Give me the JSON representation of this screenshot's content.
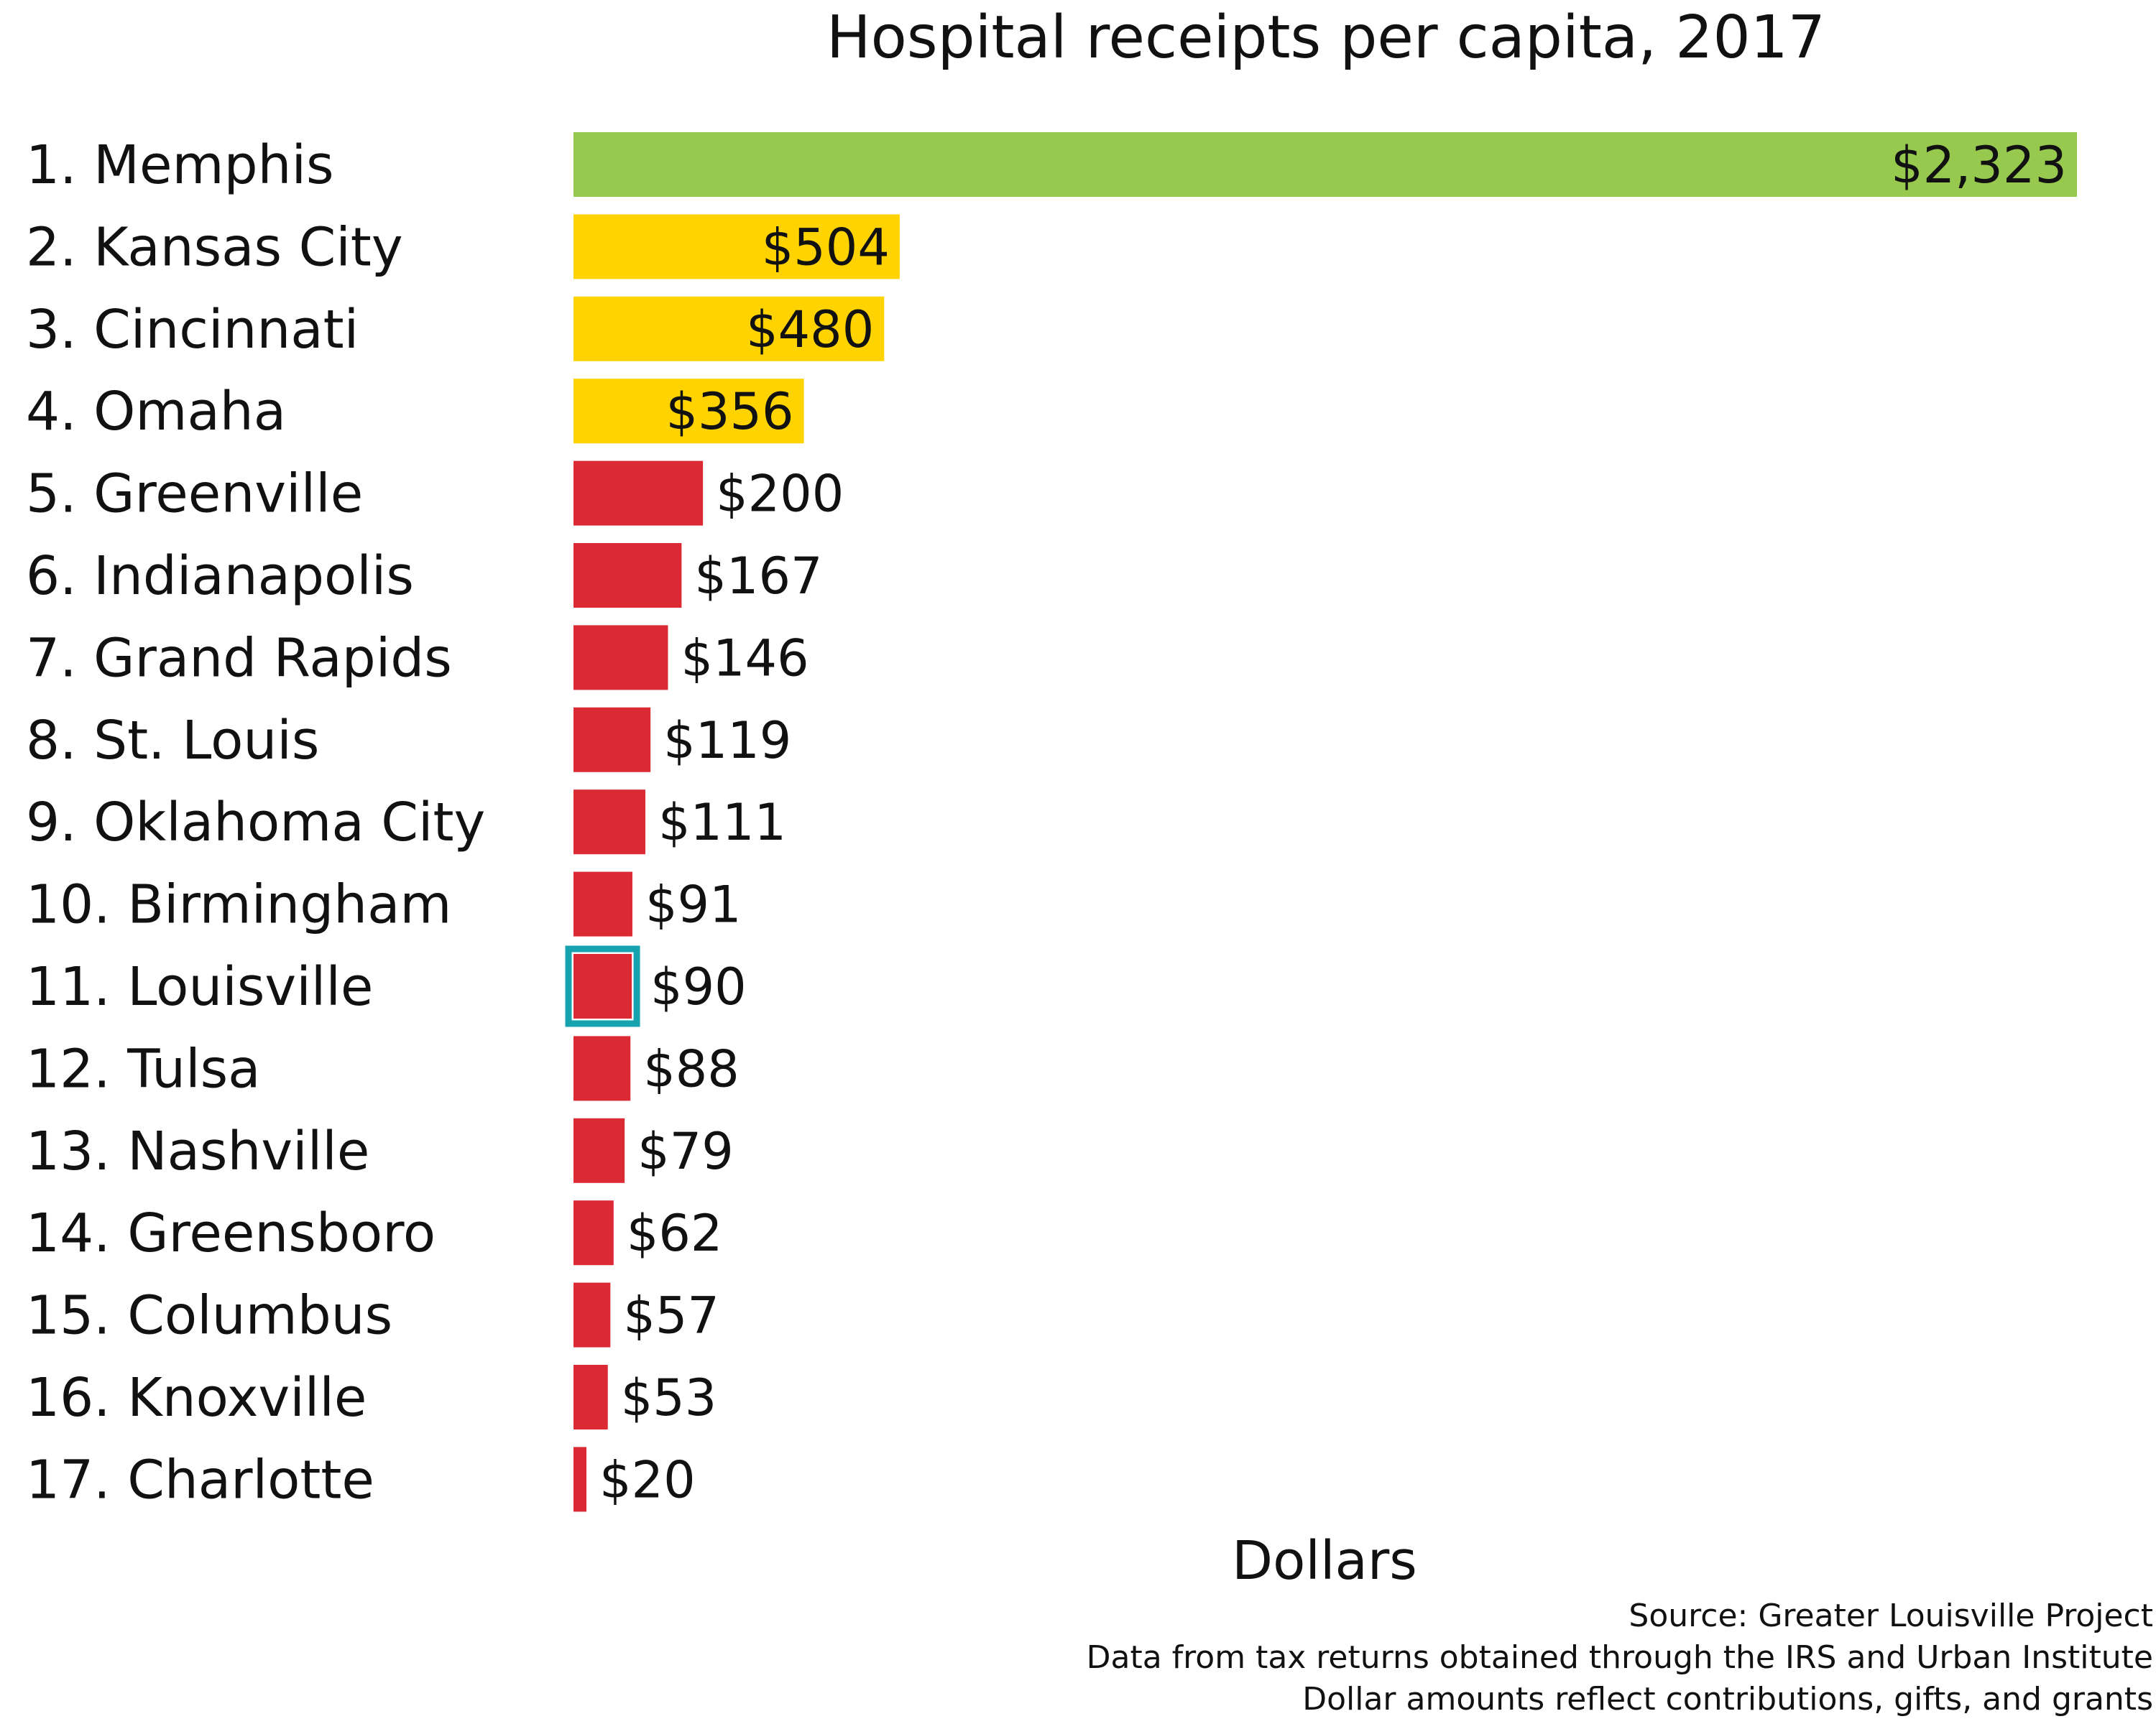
{
  "chart_data": {
    "type": "bar",
    "orientation": "horizontal",
    "title": "Hospital receipts per capita, 2017",
    "xlabel": "Dollars",
    "ylabel": "",
    "xlim": [
      0,
      2323
    ],
    "grid": false,
    "legend": "none",
    "categories": [
      "1. Memphis",
      "2. Kansas City",
      "3. Cincinnati",
      "4. Omaha",
      "5. Greenville",
      "6. Indianapolis",
      "7. Grand Rapids",
      "8. St. Louis",
      "9. Oklahoma City",
      "10. Birmingham",
      "11. Louisville",
      "12. Tulsa",
      "13. Nashville",
      "14. Greensboro",
      "15. Columbus",
      "16. Knoxville",
      "17. Charlotte"
    ],
    "values": [
      2323,
      504,
      480,
      356,
      200,
      167,
      146,
      119,
      111,
      91,
      90,
      88,
      79,
      62,
      57,
      53,
      20
    ],
    "value_labels": [
      "$2,323",
      "$504",
      "$480",
      "$356",
      "$200",
      "$167",
      "$146",
      "$119",
      "$111",
      "$91",
      "$90",
      "$88",
      "$79",
      "$62",
      "$57",
      "$53",
      "$20"
    ],
    "bar_colors": [
      "#96c94d",
      "#ffd300",
      "#ffd300",
      "#ffd300",
      "#dc2a35",
      "#dc2a35",
      "#dc2a35",
      "#dc2a35",
      "#dc2a35",
      "#dc2a35",
      "#dc2a35",
      "#dc2a35",
      "#dc2a35",
      "#dc2a35",
      "#dc2a35",
      "#dc2a35",
      "#dc2a35"
    ],
    "highlight": {
      "category": "11. Louisville",
      "color": "#17a2b0"
    },
    "notes": [
      "Source: Greater Louisville Project",
      "Data from tax returns obtained through the IRS and Urban Institute",
      "Dollar amounts reflect contributions, gifts, and grants"
    ]
  }
}
